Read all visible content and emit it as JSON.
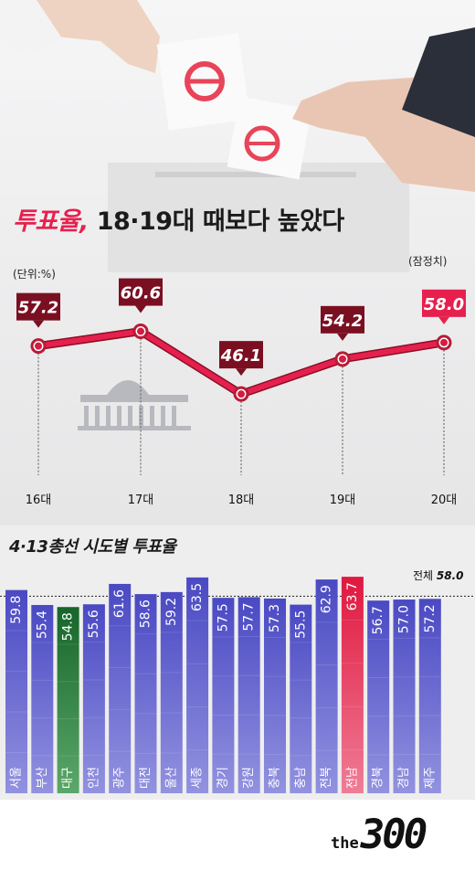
{
  "headline": {
    "part1": "투표율,",
    "part2": "18·19대 때보다 높았다"
  },
  "unit_label": "(단위:%)",
  "prelim_label": "(잠정치)",
  "sub_headline": "4·13총선 시도별 투표율",
  "total": {
    "label": "전체",
    "value": "58.0"
  },
  "logo": {
    "the": "the",
    "number": "300"
  },
  "colors": {
    "accent": "#e6204e",
    "label_dark": "#7a0f22",
    "bar_blue": "#4b4dc4",
    "bar_green": "#1c6e2a",
    "bar_red": "#e6204e"
  },
  "chart_data": [
    {
      "type": "line",
      "title": "투표율, 18·19대 때보다 높았다",
      "unit": "(단위:%)",
      "categories": [
        "16대",
        "17대",
        "18대",
        "19대",
        "20대"
      ],
      "values": [
        57.2,
        60.6,
        46.1,
        54.2,
        58.0
      ],
      "labels": [
        "57.2",
        "60.6",
        "46.1",
        "54.2",
        "58.0"
      ],
      "annotations": [
        {
          "category": "20대",
          "text": "(잠정치)"
        }
      ],
      "ylim": [
        40,
        66
      ]
    },
    {
      "type": "bar",
      "title": "4·13총선 시도별 투표율",
      "categories": [
        "서울",
        "부산",
        "대구",
        "인천",
        "광주",
        "대전",
        "울산",
        "세종",
        "경기",
        "강원",
        "충북",
        "충남",
        "전북",
        "전남",
        "경북",
        "경남",
        "제주"
      ],
      "values": [
        59.8,
        55.4,
        54.8,
        55.6,
        61.6,
        58.6,
        59.2,
        63.5,
        57.5,
        57.7,
        57.3,
        55.5,
        62.9,
        63.7,
        56.7,
        57.0,
        57.2
      ],
      "labels": [
        "59.8",
        "55.4",
        "54.8",
        "55.6",
        "61.6",
        "58.6",
        "59.2",
        "63.5",
        "57.5",
        "57.7",
        "57.3",
        "55.5",
        "62.9",
        "63.7",
        "56.7",
        "57.0",
        "57.2"
      ],
      "highlight": {
        "대구": "green",
        "전남": "red"
      },
      "reference": {
        "label": "전체",
        "value": 58.0
      },
      "ylim": [
        0,
        64
      ]
    }
  ]
}
